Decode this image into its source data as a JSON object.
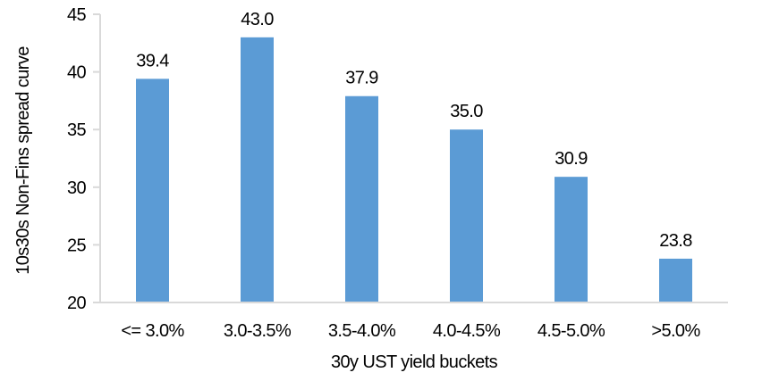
{
  "chart_data": {
    "type": "bar",
    "title": "",
    "xlabel": "30y UST yield buckets",
    "ylabel": "10s30s Non-Fins spread curve",
    "categories": [
      "<= 3.0%",
      "3.0-3.5%",
      "3.5-4.0%",
      "4.0-4.5%",
      "4.5-5.0%",
      ">5.0%"
    ],
    "values": [
      39.4,
      43.0,
      37.9,
      35.0,
      30.9,
      23.8
    ],
    "data_labels": [
      "39.4",
      "43.0",
      "37.9",
      "35.0",
      "30.9",
      "23.8"
    ],
    "ylim": [
      20,
      45
    ],
    "yticks": [
      "20",
      "25",
      "30",
      "35",
      "40",
      "45"
    ],
    "grid": false,
    "legend": "none",
    "colors": {
      "bar": "#5b9bd5",
      "axis": "#d9d9d9"
    }
  }
}
